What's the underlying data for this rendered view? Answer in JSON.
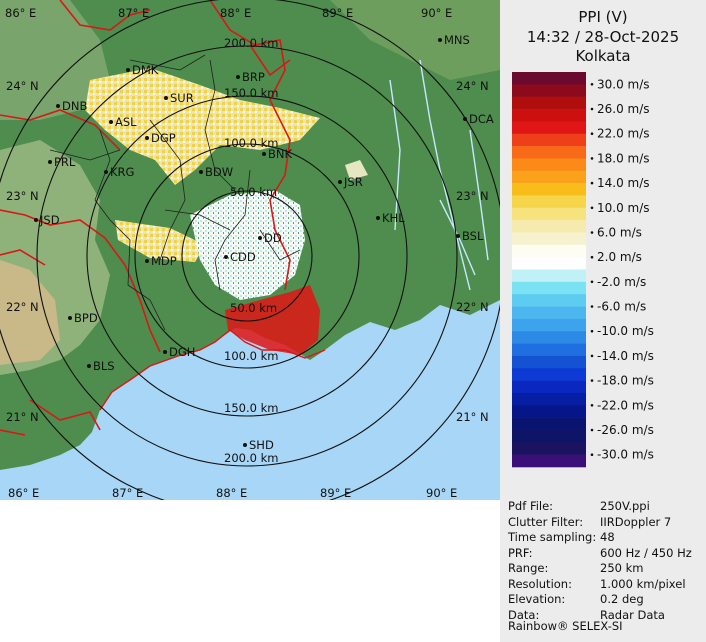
{
  "header": {
    "product": "PPI (V)",
    "datetime": "14:32 / 28-Oct-2025",
    "station": "Kolkata"
  },
  "legend": {
    "units": "m/s",
    "items": [
      {
        "label": "30.0 m/s",
        "color": "#6a0a2e"
      },
      {
        "label": "",
        "color": "#8c0a1e"
      },
      {
        "label": "26.0 m/s",
        "color": "#b00d0d"
      },
      {
        "label": "",
        "color": "#cc1010"
      },
      {
        "label": "22.0 m/s",
        "color": "#e01515"
      },
      {
        "label": "",
        "color": "#ef3e1a"
      },
      {
        "label": "18.0 m/s",
        "color": "#f86a1a"
      },
      {
        "label": "",
        "color": "#fb8a18"
      },
      {
        "label": "14.0 m/s",
        "color": "#fca11a"
      },
      {
        "label": "",
        "color": "#f8bd1a"
      },
      {
        "label": "10.0 m/s",
        "color": "#f7d54a"
      },
      {
        "label": "",
        "color": "#f6e37e"
      },
      {
        "label": "6.0 m/s",
        "color": "#f6ebae"
      },
      {
        "label": "",
        "color": "#f6f1cf"
      },
      {
        "label": "2.0 m/s",
        "color": "#fdfdf4"
      },
      {
        "label": "",
        "color": "#ffffff"
      },
      {
        "label": "-2.0 m/s",
        "color": "#bff1f6"
      },
      {
        "label": "",
        "color": "#7be2f3"
      },
      {
        "label": "-6.0 m/s",
        "color": "#5ecbf1"
      },
      {
        "label": "",
        "color": "#4db6ef"
      },
      {
        "label": "-10.0 m/s",
        "color": "#3da3ec"
      },
      {
        "label": "",
        "color": "#2c89e6"
      },
      {
        "label": "-14.0 m/s",
        "color": "#1f6fe0"
      },
      {
        "label": "",
        "color": "#1452d4"
      },
      {
        "label": "-18.0 m/s",
        "color": "#0d3ad4"
      },
      {
        "label": "",
        "color": "#0a28c0"
      },
      {
        "label": "-22.0 m/s",
        "color": "#061ea4"
      },
      {
        "label": "",
        "color": "#06168a"
      },
      {
        "label": "-26.0 m/s",
        "color": "#0a1470"
      },
      {
        "label": "",
        "color": "#0e1466"
      },
      {
        "label": "-30.0 m/s",
        "color": "#1b1260"
      },
      {
        "label": "",
        "color": "#3a0f78"
      }
    ]
  },
  "map": {
    "lon_labels_top": [
      "86° E",
      "87° E",
      "88° E",
      "89° E",
      "90° E"
    ],
    "lon_labels_bottom": [
      "86° E",
      "87° E",
      "88° E",
      "89° E",
      "90° E"
    ],
    "lat_labels_left": [
      "24° N",
      "23° N",
      "22° N",
      "21° N"
    ],
    "lat_labels_right": [
      "24° N",
      "23° N",
      "22° N",
      "21° N"
    ],
    "range_rings": [
      "50.0 km",
      "100.0 km",
      "150.0 km",
      "200.0 km"
    ],
    "range_labels_top": [
      "200.0 km",
      "150.0 km",
      "100.0 km",
      "50.0 km"
    ],
    "range_labels_bottom": [
      "50.0 km",
      "100.0 km",
      "150.0 km",
      "200.0 km"
    ],
    "stations": [
      {
        "name": "DMK"
      },
      {
        "name": "BRP"
      },
      {
        "name": "MNS"
      },
      {
        "name": "DNB"
      },
      {
        "name": "SUR"
      },
      {
        "name": "ASL"
      },
      {
        "name": "DCA"
      },
      {
        "name": "DGP"
      },
      {
        "name": "PRL"
      },
      {
        "name": "KRG"
      },
      {
        "name": "BNK"
      },
      {
        "name": "BDW"
      },
      {
        "name": "JSR"
      },
      {
        "name": "JSD"
      },
      {
        "name": "KHL"
      },
      {
        "name": "BSL"
      },
      {
        "name": "DD"
      },
      {
        "name": "MDP"
      },
      {
        "name": "CDD"
      },
      {
        "name": "BPD"
      },
      {
        "name": "DGH"
      },
      {
        "name": "BLS"
      },
      {
        "name": "SHD"
      }
    ],
    "colors": {
      "land": "#4e8d4e",
      "highland": "#8fb27a",
      "sea": "#a8d6f6",
      "ring": "#111111",
      "boundary": "#d81818",
      "district": "#202020"
    }
  },
  "metadata": {
    "rows": [
      {
        "key": "Pdf File:",
        "value": "250V.ppi"
      },
      {
        "key": "Clutter Filter:",
        "value": "IIRDoppler 7"
      },
      {
        "key": "Time sampling:",
        "value": "48"
      },
      {
        "key": "PRF:",
        "value": "600 Hz / 450 Hz"
      },
      {
        "key": "Range:",
        "value": "250 km"
      },
      {
        "key": "Resolution:",
        "value": "1.000 km/pixel"
      },
      {
        "key": "Elevation:",
        "value": "0.2 deg"
      },
      {
        "key": "Data:",
        "value": "Radar Data"
      }
    ],
    "brand": "Rainbow® SELEX-SI"
  }
}
